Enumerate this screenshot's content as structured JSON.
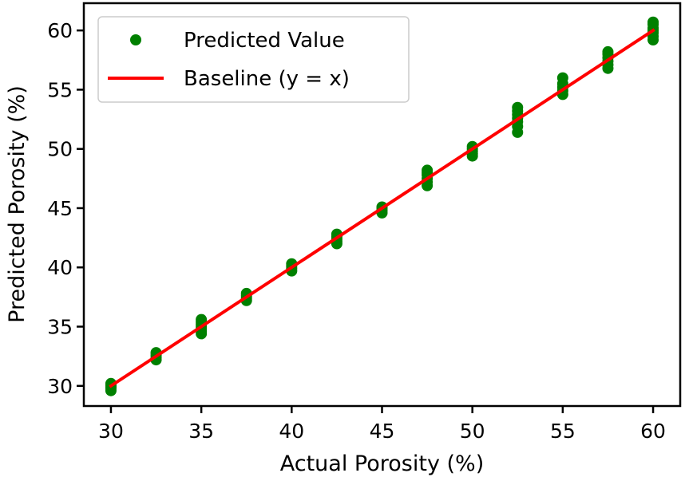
{
  "chart_data": {
    "type": "scatter",
    "xlabel": "Actual Porosity (%)",
    "ylabel": "Predicted Porosity (%)",
    "xlim": [
      28.5,
      61.5
    ],
    "ylim": [
      28.3,
      62.3
    ],
    "xticks": [
      30,
      35,
      40,
      45,
      50,
      55,
      60
    ],
    "yticks": [
      30,
      35,
      40,
      45,
      50,
      55,
      60
    ],
    "grid": false,
    "legend_position": "top-left",
    "series": [
      {
        "name": "Predicted Value",
        "kind": "scatter",
        "color": "#008000",
        "points": [
          [
            30,
            29.6
          ],
          [
            30,
            29.8
          ],
          [
            30,
            29.9
          ],
          [
            30,
            30.0
          ],
          [
            30,
            30.1
          ],
          [
            30,
            30.2
          ],
          [
            32.5,
            32.2
          ],
          [
            32.5,
            32.4
          ],
          [
            32.5,
            32.6
          ],
          [
            32.5,
            32.8
          ],
          [
            35,
            34.4
          ],
          [
            35,
            34.6
          ],
          [
            35,
            34.8
          ],
          [
            35,
            35.0
          ],
          [
            35,
            35.2
          ],
          [
            35,
            35.4
          ],
          [
            35,
            35.6
          ],
          [
            37.5,
            37.2
          ],
          [
            37.5,
            37.4
          ],
          [
            37.5,
            37.6
          ],
          [
            37.5,
            37.8
          ],
          [
            40,
            39.7
          ],
          [
            40,
            39.9
          ],
          [
            40,
            40.1
          ],
          [
            40,
            40.3
          ],
          [
            42.5,
            42.0
          ],
          [
            42.5,
            42.2
          ],
          [
            42.5,
            42.4
          ],
          [
            42.5,
            42.6
          ],
          [
            42.5,
            42.8
          ],
          [
            45,
            44.6
          ],
          [
            45,
            44.8
          ],
          [
            45,
            45.0
          ],
          [
            45,
            45.1
          ],
          [
            47.5,
            46.9
          ],
          [
            47.5,
            47.2
          ],
          [
            47.5,
            47.5
          ],
          [
            47.5,
            47.8
          ],
          [
            47.5,
            48.0
          ],
          [
            47.5,
            48.2
          ],
          [
            50,
            49.4
          ],
          [
            50,
            49.6
          ],
          [
            50,
            49.8
          ],
          [
            50,
            50.0
          ],
          [
            50,
            50.2
          ],
          [
            52.5,
            51.4
          ],
          [
            52.5,
            51.9
          ],
          [
            52.5,
            52.3
          ],
          [
            52.5,
            52.6
          ],
          [
            52.5,
            52.9
          ],
          [
            52.5,
            53.2
          ],
          [
            52.5,
            53.5
          ],
          [
            55,
            54.6
          ],
          [
            55,
            54.9
          ],
          [
            55,
            55.2
          ],
          [
            55,
            55.5
          ],
          [
            55,
            56.0
          ],
          [
            57.5,
            56.8
          ],
          [
            57.5,
            57.1
          ],
          [
            57.5,
            57.4
          ],
          [
            57.5,
            57.7
          ],
          [
            57.5,
            58.0
          ],
          [
            57.5,
            58.2
          ],
          [
            60,
            59.2
          ],
          [
            60,
            59.5
          ],
          [
            60,
            59.8
          ],
          [
            60,
            60.0
          ],
          [
            60,
            60.2
          ],
          [
            60,
            60.5
          ],
          [
            60,
            60.7
          ]
        ]
      },
      {
        "name": "Baseline (y = x)",
        "kind": "line",
        "color": "#ff0000",
        "points": [
          [
            30,
            30
          ],
          [
            60,
            60
          ]
        ]
      }
    ]
  }
}
